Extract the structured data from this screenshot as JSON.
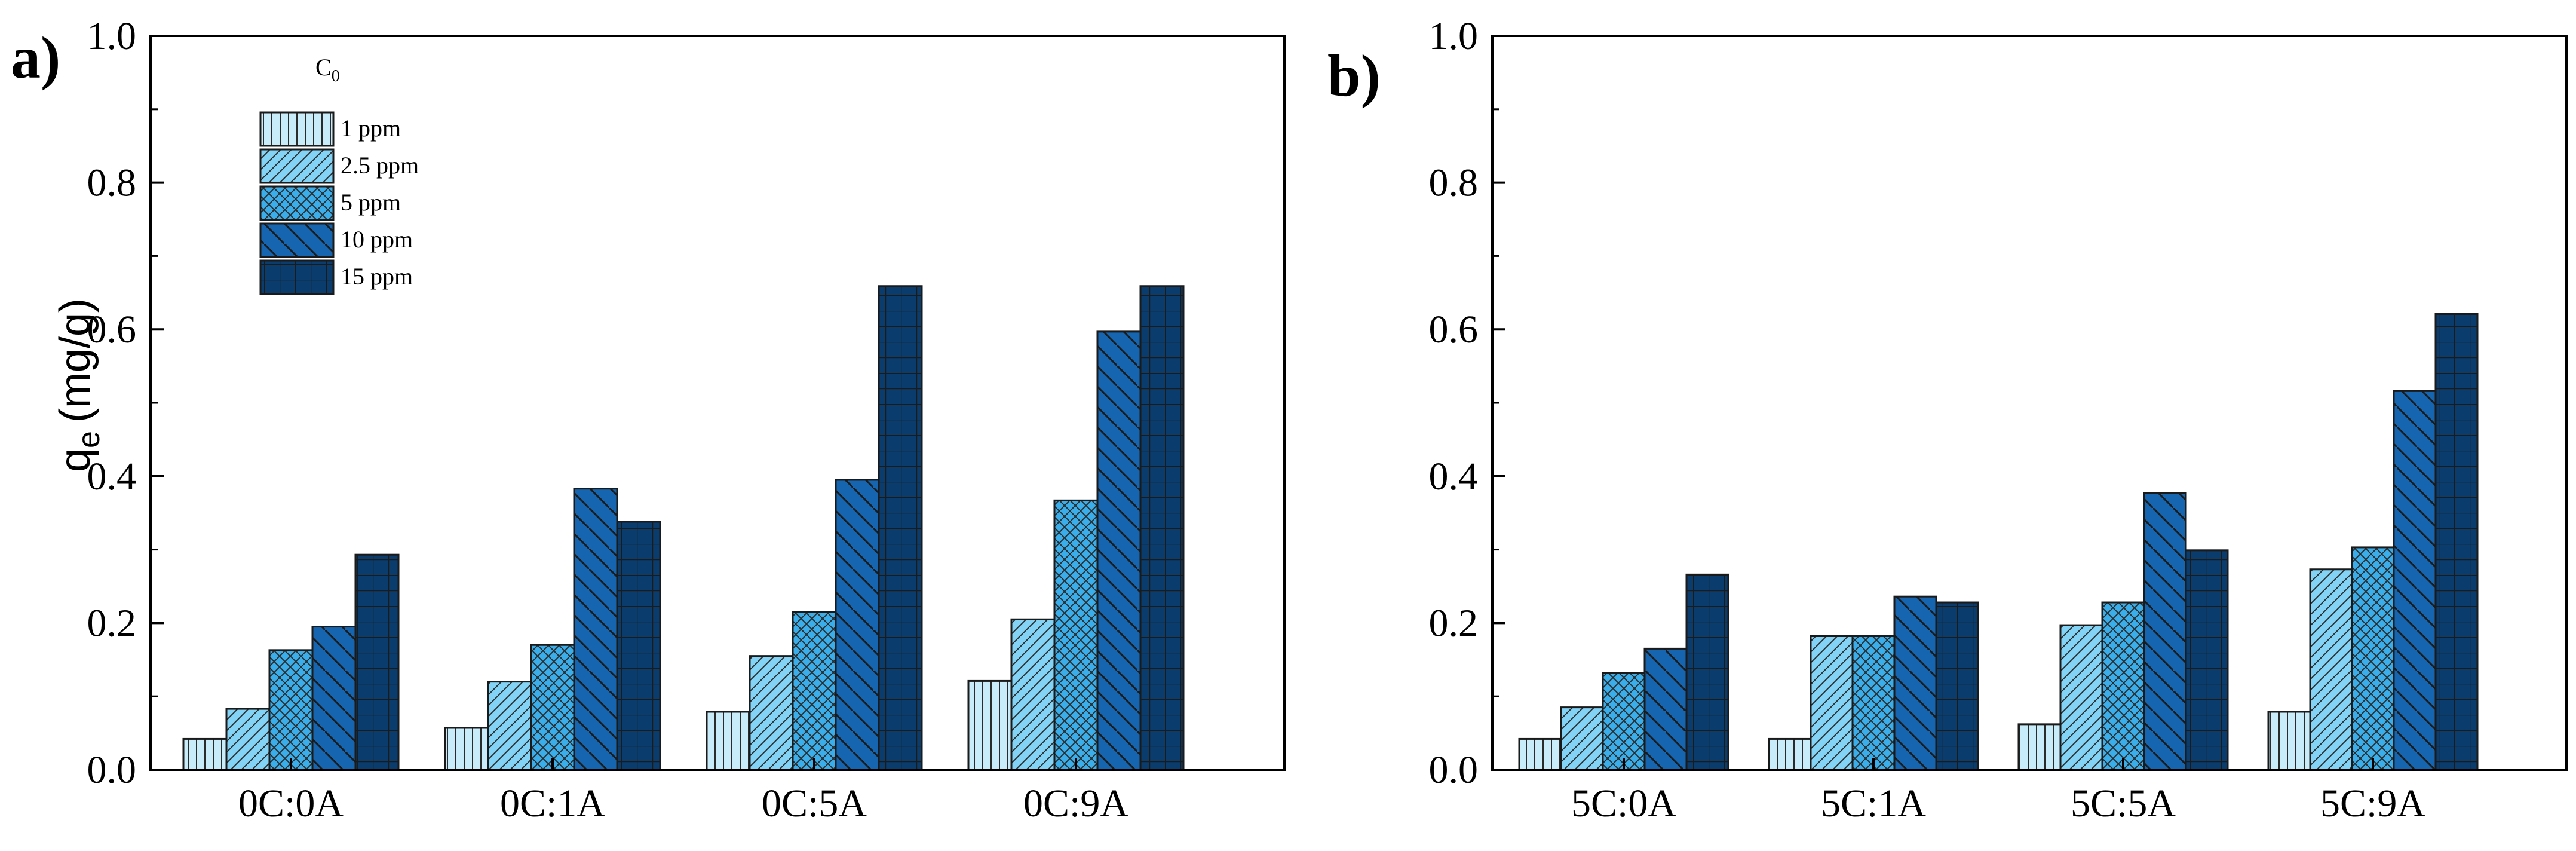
{
  "legend": {
    "title": "C",
    "title_sub": "0",
    "entries": [
      "1 ppm",
      "2.5 ppm",
      "5 ppm",
      "10 ppm",
      "15 ppm"
    ]
  },
  "series_styles": [
    {
      "name": "1 ppm",
      "color": "#c9ecfb",
      "pattern": "vertical"
    },
    {
      "name": "2.5 ppm",
      "color": "#82d3f5",
      "pattern": "diagonal-up"
    },
    {
      "name": "5 ppm",
      "color": "#3aaeea",
      "pattern": "crosshatch"
    },
    {
      "name": "10 ppm",
      "color": "#1565b0",
      "pattern": "diagonal-down"
    },
    {
      "name": "15 ppm",
      "color": "#0b3c6e",
      "pattern": "grid"
    }
  ],
  "chart_data": [
    {
      "type": "bar",
      "panel": "a)",
      "ylabel": "q",
      "ylabel_sub": "e",
      "ylabel_unit": "(mg/g)",
      "ylim": [
        0,
        1.0
      ],
      "yticks": [
        "0.0",
        "0.2",
        "0.4",
        "0.6",
        "0.8",
        "1.0"
      ],
      "categories": [
        "0C:0A",
        "0C:1A",
        "0C:5A",
        "0C:9A"
      ],
      "series": [
        {
          "name": "1 ppm",
          "values": [
            0.042,
            0.057,
            0.079,
            0.121
          ]
        },
        {
          "name": "2.5 ppm",
          "values": [
            0.083,
            0.12,
            0.155,
            0.205
          ]
        },
        {
          "name": "5 ppm",
          "values": [
            0.163,
            0.17,
            0.215,
            0.367
          ]
        },
        {
          "name": "10 ppm",
          "values": [
            0.195,
            0.383,
            0.395,
            0.597
          ]
        },
        {
          "name": "15 ppm",
          "values": [
            0.293,
            0.338,
            0.659,
            0.659
          ]
        }
      ],
      "legend_visible": true
    },
    {
      "type": "bar",
      "panel": "b)",
      "ylim": [
        0,
        1.0
      ],
      "yticks": [
        "0.0",
        "0.2",
        "0.4",
        "0.6",
        "0.8",
        "1.0"
      ],
      "categories": [
        "5C:0A",
        "5C:1A",
        "5C:5A",
        "5C:9A"
      ],
      "series": [
        {
          "name": "1 ppm",
          "values": [
            0.042,
            0.042,
            0.062,
            0.079
          ]
        },
        {
          "name": "2.5 ppm",
          "values": [
            0.085,
            0.182,
            0.197,
            0.273
          ]
        },
        {
          "name": "5 ppm",
          "values": [
            0.132,
            0.182,
            0.228,
            0.303
          ]
        },
        {
          "name": "10 ppm",
          "values": [
            0.165,
            0.236,
            0.377,
            0.516
          ]
        },
        {
          "name": "15 ppm",
          "values": [
            0.266,
            0.228,
            0.299,
            0.621
          ]
        }
      ],
      "legend_visible": false
    }
  ]
}
